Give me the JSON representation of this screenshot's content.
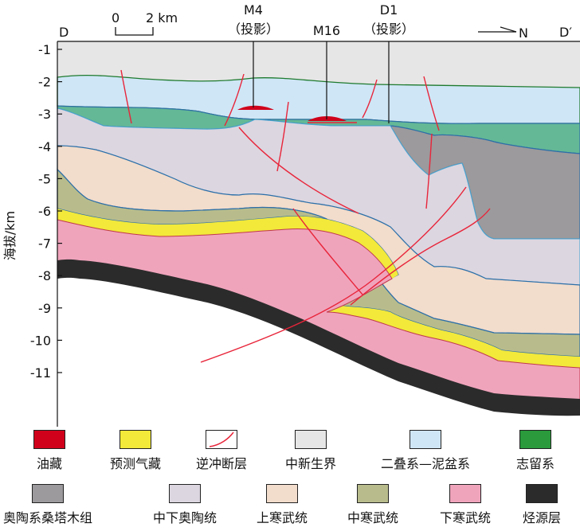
{
  "section": {
    "left_label": "D",
    "right_label": "D′",
    "scale": {
      "zero": "0",
      "length": "2 km"
    },
    "north_arrow": "N",
    "y_axis_title": "海拔/km",
    "y_ticks": [
      "-1",
      "-2",
      "-3",
      "-4",
      "-5",
      "-6",
      "-7",
      "-8",
      "-9",
      "-10",
      "-11"
    ],
    "wells": [
      {
        "name": "M4",
        "note": "（投影）"
      },
      {
        "name": "M16",
        "note": ""
      },
      {
        "name": "D1",
        "note": "（投影）"
      }
    ]
  },
  "legend": [
    {
      "label": "油藏",
      "color": "#d0021b"
    },
    {
      "label": "预测气藏",
      "color": "#f2e93a"
    },
    {
      "label": "逆冲断层",
      "color": "#e8253a"
    },
    {
      "label": "中新生界",
      "color": "#e6e6e6"
    },
    {
      "label": "二叠系—泥盆系",
      "color": "#cfe6f6"
    },
    {
      "label": "志留系",
      "color": "#2a9a3c"
    },
    {
      "label": "奥陶系桑塔木组",
      "color": "#9c9a9c"
    },
    {
      "label": "中下奥陶统",
      "color": "#dcd6e0"
    },
    {
      "label": "上寒武统",
      "color": "#f2dccb"
    },
    {
      "label": "中寒武统",
      "color": "#b8bc8c"
    },
    {
      "label": "下寒武统",
      "color": "#f0a4bc"
    },
    {
      "label": "烃源层",
      "color": "#2b2b2b"
    }
  ]
}
